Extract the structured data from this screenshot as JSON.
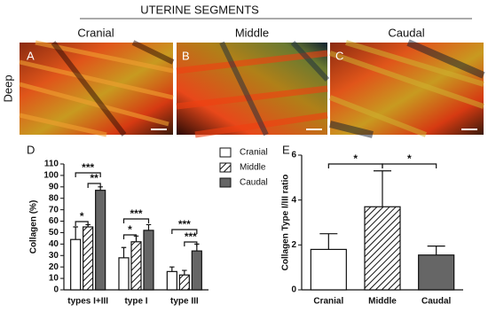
{
  "figure": {
    "title": "UTERINE SEGMENTS",
    "columns": [
      "Cranial",
      "Middle",
      "Caudal"
    ],
    "row_label": "Deep",
    "panels": [
      "A",
      "B",
      "C",
      "D",
      "E"
    ]
  },
  "chart_data": [
    {
      "type": "bar",
      "ylabel": "Collagen (%)",
      "categories": [
        "types I+III",
        "type I",
        "type III"
      ],
      "series": [
        {
          "name": "Cranial",
          "color": "#ffffff",
          "hatch": false,
          "values": [
            44,
            28,
            16
          ],
          "errors": [
            11,
            9,
            4
          ]
        },
        {
          "name": "Middle",
          "color": "#ffffff",
          "hatch": true,
          "values": [
            55,
            42,
            13
          ],
          "errors": [
            2,
            5,
            4
          ]
        },
        {
          "name": "Caudal",
          "color": "#666666",
          "hatch": false,
          "values": [
            87,
            52,
            34
          ],
          "errors": [
            3,
            5,
            6
          ]
        }
      ],
      "ylim": [
        0,
        110
      ],
      "yticks": [
        0,
        10,
        20,
        30,
        40,
        50,
        60,
        70,
        80,
        90,
        100,
        110
      ],
      "annotations": [
        "*",
        "**",
        "***",
        "*",
        "***",
        "***",
        "***"
      ]
    },
    {
      "type": "bar",
      "ylabel": "Collagen Type I/III ratio",
      "categories": [
        "Cranial",
        "Middle",
        "Caudal"
      ],
      "values": [
        1.8,
        3.7,
        1.55
      ],
      "errors": [
        0.7,
        1.6,
        0.4
      ],
      "colors": [
        "#ffffff",
        "#ffffff",
        "#666666"
      ],
      "hatch": [
        false,
        true,
        false
      ],
      "ylim": [
        0,
        6
      ],
      "yticks": [
        0,
        2,
        4,
        6
      ],
      "annotations": [
        "*",
        "*"
      ]
    }
  ]
}
